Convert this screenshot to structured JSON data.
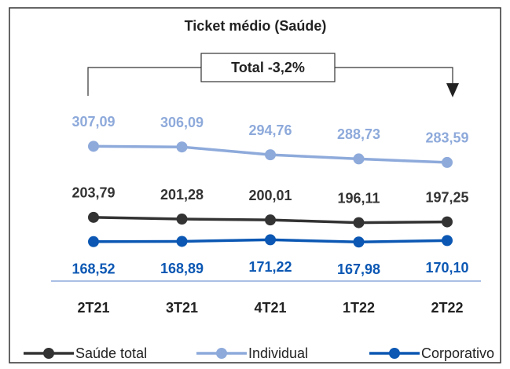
{
  "chart_data": {
    "type": "line",
    "title": "Ticket médio (Saúde)",
    "annotation": "Total -3,2%",
    "categories": [
      "2T21",
      "3T21",
      "4T21",
      "1T22",
      "2T22"
    ],
    "ylim": [
      150,
      320
    ],
    "series": [
      {
        "name": "Saúde total",
        "color": "#333333",
        "values": [
          203.79,
          201.28,
          200.01,
          196.11,
          197.25
        ],
        "value_labels": [
          "203,79",
          "201,28",
          "200,01",
          "196,11",
          "197,25"
        ]
      },
      {
        "name": "Individual",
        "color": "#8eaadb",
        "values": [
          307.09,
          306.09,
          294.76,
          288.73,
          283.59
        ],
        "value_labels": [
          "307,09",
          "306,09",
          "294,76",
          "288,73",
          "283,59"
        ]
      },
      {
        "name": "Corporativo",
        "color": "#0b57b3",
        "values": [
          168.52,
          168.89,
          171.22,
          167.98,
          170.1
        ],
        "value_labels": [
          "168,52",
          "168,89",
          "171,22",
          "167,98",
          "170,10"
        ]
      }
    ]
  }
}
